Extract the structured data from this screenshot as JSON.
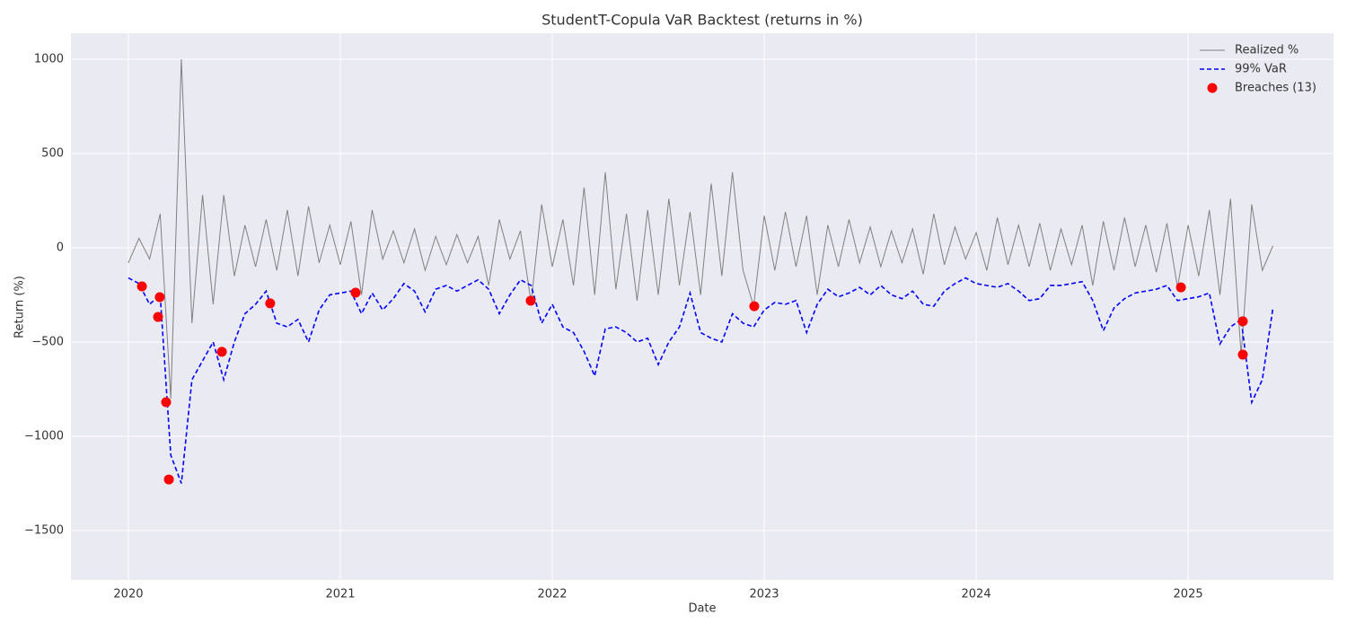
{
  "chart_data": {
    "type": "line",
    "title": "StudentT-Copula VaR Backtest (returns in %)",
    "xlabel": "Date",
    "ylabel": "Return (%)",
    "xlim": [
      2019.729,
      2025.686
    ],
    "xticks": [
      2020,
      2021,
      2022,
      2023,
      2024,
      2025
    ],
    "ylim": [
      -1762,
      1138
    ],
    "yticks": [
      {
        "value": -1500,
        "label": "−1500"
      },
      {
        "value": -1000,
        "label": "−1000"
      },
      {
        "value": -500,
        "label": "−500"
      },
      0,
      500,
      1000
    ],
    "grid": true,
    "legend": "upper right",
    "x": [
      2020.0,
      2020.05,
      2020.1,
      2020.15,
      2020.2,
      2020.25,
      2020.3,
      2020.35,
      2020.4,
      2020.45,
      2020.5,
      2020.55,
      2020.6,
      2020.65,
      2020.7,
      2020.75,
      2020.8,
      2020.85,
      2020.9,
      2020.95,
      2021.0,
      2021.05,
      2021.1,
      2021.15,
      2021.2,
      2021.25,
      2021.3,
      2021.35,
      2021.4,
      2021.45,
      2021.5,
      2021.55,
      2021.6,
      2021.65,
      2021.7,
      2021.75,
      2021.8,
      2021.85,
      2021.9,
      2021.95,
      2022.0,
      2022.05,
      2022.1,
      2022.15,
      2022.2,
      2022.25,
      2022.3,
      2022.35,
      2022.4,
      2022.45,
      2022.5,
      2022.55,
      2022.6,
      2022.65,
      2022.7,
      2022.75,
      2022.8,
      2022.85,
      2022.9,
      2022.95,
      2023.0,
      2023.05,
      2023.1,
      2023.15,
      2023.2,
      2023.25,
      2023.3,
      2023.35,
      2023.4,
      2023.45,
      2023.5,
      2023.55,
      2023.6,
      2023.65,
      2023.7,
      2023.75,
      2023.8,
      2023.85,
      2023.9,
      2023.95,
      2024.0,
      2024.05,
      2024.1,
      2024.15,
      2024.2,
      2024.25,
      2024.3,
      2024.35,
      2024.4,
      2024.45,
      2024.5,
      2024.55,
      2024.6,
      2024.65,
      2024.7,
      2024.75,
      2024.8,
      2024.85,
      2024.9,
      2024.95,
      2025.0,
      2025.05,
      2025.1,
      2025.15,
      2025.2,
      2025.25,
      2025.3,
      2025.35,
      2025.4
    ],
    "series": [
      {
        "name": "Realized %",
        "kind": "line",
        "color": "#808080",
        "dash": false,
        "values": [
          -80,
          50,
          -60,
          180,
          -800,
          1000,
          -400,
          280,
          -300,
          280,
          -150,
          120,
          -100,
          150,
          -120,
          200,
          -150,
          220,
          -80,
          120,
          -90,
          140,
          -250,
          200,
          -60,
          90,
          -80,
          100,
          -120,
          60,
          -90,
          70,
          -80,
          60,
          -200,
          150,
          -60,
          90,
          -290,
          230,
          -100,
          150,
          -200,
          320,
          -250,
          400,
          -220,
          180,
          -280,
          200,
          -250,
          260,
          -200,
          190,
          -250,
          340,
          -150,
          400,
          -120,
          -310,
          170,
          -120,
          190,
          -100,
          170,
          -250,
          120,
          -100,
          150,
          -80,
          110,
          -100,
          90,
          -80,
          100,
          -140,
          180,
          -90,
          110,
          -60,
          80,
          -120,
          160,
          -90,
          120,
          -100,
          130,
          -120,
          100,
          -90,
          120,
          -200,
          140,
          -120,
          160,
          -100,
          120,
          -130,
          130,
          -210,
          120,
          -150,
          200,
          -250,
          260,
          -570,
          230,
          -120,
          10
        ]
      },
      {
        "name": "99% VaR",
        "kind": "line",
        "color": "#0000ff",
        "dash": true,
        "values": [
          -160,
          -190,
          -300,
          -250,
          -1100,
          -1250,
          -700,
          -600,
          -500,
          -700,
          -500,
          -350,
          -300,
          -230,
          -400,
          -420,
          -380,
          -500,
          -330,
          -250,
          -240,
          -230,
          -350,
          -240,
          -330,
          -270,
          -190,
          -230,
          -340,
          -220,
          -200,
          -230,
          -200,
          -170,
          -220,
          -350,
          -250,
          -170,
          -200,
          -400,
          -300,
          -420,
          -450,
          -550,
          -680,
          -430,
          -420,
          -450,
          -500,
          -480,
          -620,
          -500,
          -420,
          -240,
          -450,
          -480,
          -500,
          -350,
          -400,
          -420,
          -330,
          -290,
          -300,
          -280,
          -450,
          -300,
          -220,
          -260,
          -240,
          -210,
          -250,
          -200,
          -250,
          -270,
          -230,
          -300,
          -310,
          -230,
          -190,
          -160,
          -190,
          -200,
          -210,
          -190,
          -230,
          -280,
          -270,
          -200,
          -200,
          -190,
          -180,
          -280,
          -440,
          -320,
          -270,
          -240,
          -230,
          -220,
          -200,
          -280,
          -270,
          -260,
          -240,
          -510,
          -420,
          -380,
          -820,
          -700,
          -320
        ]
      },
      {
        "name": "Breaches (13)",
        "kind": "scatter",
        "color": "#ff0000",
        "x": [
          2020.064,
          2020.148,
          2020.14,
          2020.178,
          2020.191,
          2020.441,
          2020.669,
          2021.072,
          2021.898,
          2022.953,
          2024.966,
          2025.258,
          2025.258
        ],
        "values": [
          -205,
          -262,
          -367,
          -819,
          -1229,
          -552,
          -295,
          -238,
          -281,
          -310,
          -210,
          -390,
          -567
        ]
      }
    ]
  }
}
